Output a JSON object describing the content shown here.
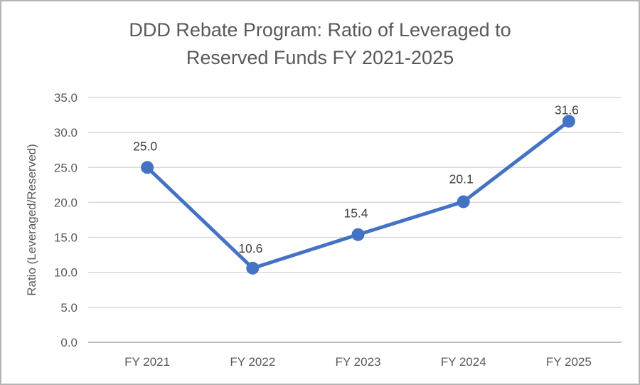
{
  "chart_data": {
    "type": "line",
    "title": "DDD Rebate Program: Ratio of Leveraged to Reserved Funds FY 2021-2025",
    "categories": [
      "FY 2021",
      "FY 2022",
      "FY 2023",
      "FY 2024",
      "FY 2025"
    ],
    "values": [
      25.0,
      10.6,
      15.4,
      20.1,
      31.6
    ],
    "data_labels": [
      "25.0",
      "10.6",
      "15.4",
      "20.1",
      "31.6"
    ],
    "xlabel": "",
    "ylabel": "Ratio (Leveraged/Reserved)",
    "ylim": [
      0,
      35
    ],
    "yticks": [
      0,
      5,
      10,
      15,
      20,
      25,
      30,
      35
    ],
    "ytick_labels": [
      "0.0",
      "5.0",
      "10.0",
      "15.0",
      "20.0",
      "25.0",
      "30.0",
      "35.0"
    ],
    "grid": "horizontal",
    "legend": "none",
    "colors": {
      "line": "#4472C4",
      "marker": "#4472C4",
      "title_text": "#595959",
      "axis_text": "#595959",
      "label_text": "#404040",
      "gridline": "#D9D9D9",
      "axis_line": "#BFBFBF",
      "background": "#FFFFFF",
      "border": "#B4B4B4"
    }
  }
}
